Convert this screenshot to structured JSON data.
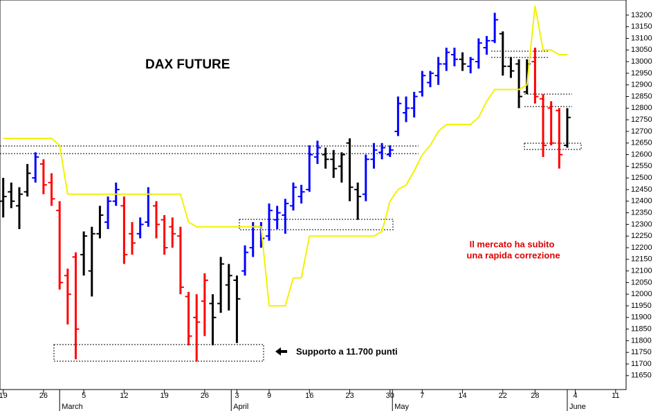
{
  "chart_data": {
    "type": "ohlc",
    "title": "DAX FUTURE",
    "annotation": [
      "Il mercato ha subito",
      "una rapida correzione"
    ],
    "support_label": "Supporto a 11.700 punti",
    "ylim": [
      11590,
      13265
    ],
    "yticks": [
      11650,
      11700,
      11750,
      11800,
      11850,
      11900,
      11950,
      12000,
      12050,
      12100,
      12150,
      12200,
      12250,
      12300,
      12350,
      12400,
      12450,
      12500,
      12550,
      12600,
      12650,
      12700,
      12750,
      12800,
      12850,
      12900,
      12950,
      13000,
      13050,
      13100,
      13150,
      13200
    ],
    "xlim": [
      -0.4,
      77.3
    ],
    "xticks": [
      {
        "value": 0,
        "label": "19"
      },
      {
        "value": 5,
        "label": "26"
      },
      {
        "value": 10,
        "label": "5"
      },
      {
        "value": 15,
        "label": "12"
      },
      {
        "value": 20,
        "label": "19"
      },
      {
        "value": 25,
        "label": "26"
      },
      {
        "value": 29,
        "label": "3"
      },
      {
        "value": 33,
        "label": "9"
      },
      {
        "value": 38,
        "label": "16"
      },
      {
        "value": 43,
        "label": "23"
      },
      {
        "value": 48,
        "label": "30"
      },
      {
        "value": 52,
        "label": "7"
      },
      {
        "value": 57,
        "label": "14"
      },
      {
        "value": 62,
        "label": "22"
      },
      {
        "value": 66,
        "label": "28"
      },
      {
        "value": 71,
        "label": "4"
      },
      {
        "value": 76,
        "label": "11"
      }
    ],
    "month_ticks": [
      {
        "value": 7,
        "label": "March"
      },
      {
        "value": 28.3,
        "label": "April"
      },
      {
        "value": 48.3,
        "label": "May"
      },
      {
        "value": 70,
        "label": "June"
      }
    ],
    "open": [
      12400,
      12440,
      12380,
      12440,
      12500,
      12560,
      12480,
      12360,
      12080,
      12160,
      12170,
      12100,
      12260,
      12310,
      12400,
      12380,
      12260,
      12260,
      12310,
      12380,
      12320,
      12290,
      12250,
      11990,
      11900,
      11970,
      11960,
      11960,
      12040,
      12060,
      12100,
      12200,
      12290,
      12250,
      12320,
      12340,
      12380,
      12420,
      12450,
      12590,
      12600,
      12580,
      12550,
      12650,
      12450,
      12430,
      12580,
      12610,
      12600,
      12700,
      12780,
      12800,
      12870,
      12910,
      12940,
      12990,
      13030,
      13010,
      12980,
      13000,
      13060,
      13090,
      13120,
      12980,
      12990,
      12870,
      13000,
      12840,
      12800,
      12790,
      12640
    ],
    "high": [
      12500,
      12480,
      12460,
      12560,
      12610,
      12580,
      12520,
      12400,
      12110,
      12180,
      12270,
      12290,
      12380,
      12420,
      12480,
      12420,
      12310,
      12330,
      12460,
      12400,
      12340,
      12330,
      12290,
      12010,
      12000,
      12090,
      12000,
      12160,
      12130,
      12080,
      12210,
      12310,
      12310,
      12390,
      12380,
      12410,
      12480,
      12470,
      12640,
      12660,
      12630,
      12620,
      12610,
      12670,
      12480,
      12600,
      12650,
      12650,
      12640,
      12850,
      12850,
      12870,
      12960,
      12960,
      13020,
      13060,
      13060,
      13040,
      13020,
      13100,
      13110,
      13210,
      13130,
      13020,
      13010,
      13010,
      13060,
      12860,
      12830,
      12800,
      12800
    ],
    "low": [
      12330,
      12370,
      12280,
      12420,
      12480,
      12430,
      12380,
      12020,
      11870,
      11720,
      12080,
      11990,
      12240,
      12280,
      12380,
      12130,
      12170,
      12240,
      12290,
      12240,
      12170,
      12200,
      12000,
      11780,
      11710,
      11820,
      11780,
      11920,
      11930,
      11790,
      12080,
      12160,
      12200,
      12230,
      12280,
      12260,
      12360,
      12390,
      12440,
      12560,
      12540,
      12500,
      12480,
      12400,
      12320,
      12400,
      12540,
      12580,
      12590,
      12680,
      12740,
      12760,
      12850,
      12890,
      12900,
      12960,
      12980,
      12960,
      12950,
      12970,
      13030,
      13080,
      12940,
      12930,
      12800,
      12860,
      12820,
      12590,
      12640,
      12540,
      12630
    ],
    "close": [
      12420,
      12400,
      12430,
      12520,
      12590,
      12470,
      12410,
      12050,
      12000,
      11850,
      12250,
      12260,
      12340,
      12400,
      12450,
      12170,
      12220,
      12300,
      12430,
      12300,
      12200,
      12260,
      12030,
      11820,
      11880,
      12060,
      11900,
      12130,
      12080,
      11980,
      12180,
      12290,
      12240,
      12360,
      12350,
      12390,
      12460,
      12440,
      12600,
      12630,
      12580,
      12540,
      12600,
      12460,
      12420,
      12580,
      12620,
      12630,
      12620,
      12820,
      12800,
      12850,
      12940,
      12950,
      12990,
      13040,
      13010,
      12990,
      13010,
      13080,
      13090,
      13180,
      12980,
      12960,
      12850,
      12990,
      12850,
      12640,
      12650,
      12600,
      12760
    ],
    "bar_colors": [
      "#000",
      "#000",
      "#000",
      "#000",
      "#0000ff",
      "#ff0000",
      "#ff0000",
      "#ff0000",
      "#ff0000",
      "#ff0000",
      "#000",
      "#000",
      "#000",
      "#0000ff",
      "#0000ff",
      "#ff0000",
      "#ff0000",
      "#0000ff",
      "#0000ff",
      "#ff0000",
      "#ff0000",
      "#ff0000",
      "#ff0000",
      "#ff0000",
      "#ff0000",
      "#ff0000",
      "#000",
      "#000",
      "#000",
      "#000",
      "#0000ff",
      "#0000ff",
      "#0000ff",
      "#0000ff",
      "#0000ff",
      "#0000ff",
      "#0000ff",
      "#0000ff",
      "#0000ff",
      "#0000ff",
      "#000",
      "#000",
      "#000",
      "#000",
      "#000",
      "#0000ff",
      "#0000ff",
      "#0000ff",
      "#0000ff",
      "#0000ff",
      "#0000ff",
      "#0000ff",
      "#0000ff",
      "#0000ff",
      "#0000ff",
      "#0000ff",
      "#0000ff",
      "#000",
      "#0000ff",
      "#0000ff",
      "#0000ff",
      "#0000ff",
      "#000",
      "#000",
      "#000",
      "#000",
      "#ff0000",
      "#ff0000",
      "#ff0000",
      "#ff0000",
      "#000"
    ],
    "line": {
      "color": "#f2f200",
      "values": [
        12670,
        12670,
        12670,
        12670,
        12670,
        12670,
        12670,
        12640,
        12430,
        12430,
        12430,
        12430,
        12430,
        12430,
        12430,
        12430,
        12430,
        12430,
        12430,
        12430,
        12430,
        12430,
        12430,
        12310,
        12290,
        12290,
        12290,
        12290,
        12290,
        12290,
        12290,
        12290,
        12290,
        11950,
        11950,
        11950,
        12070,
        12070,
        12250,
        12250,
        12250,
        12250,
        12250,
        12250,
        12250,
        12250,
        12250,
        12270,
        12400,
        12450,
        12470,
        12530,
        12600,
        12640,
        12700,
        12730,
        12730,
        12730,
        12730,
        12760,
        12830,
        12880,
        12880,
        12880,
        12880,
        12900,
        13240,
        13050,
        13050,
        13030,
        13030
      ]
    }
  }
}
